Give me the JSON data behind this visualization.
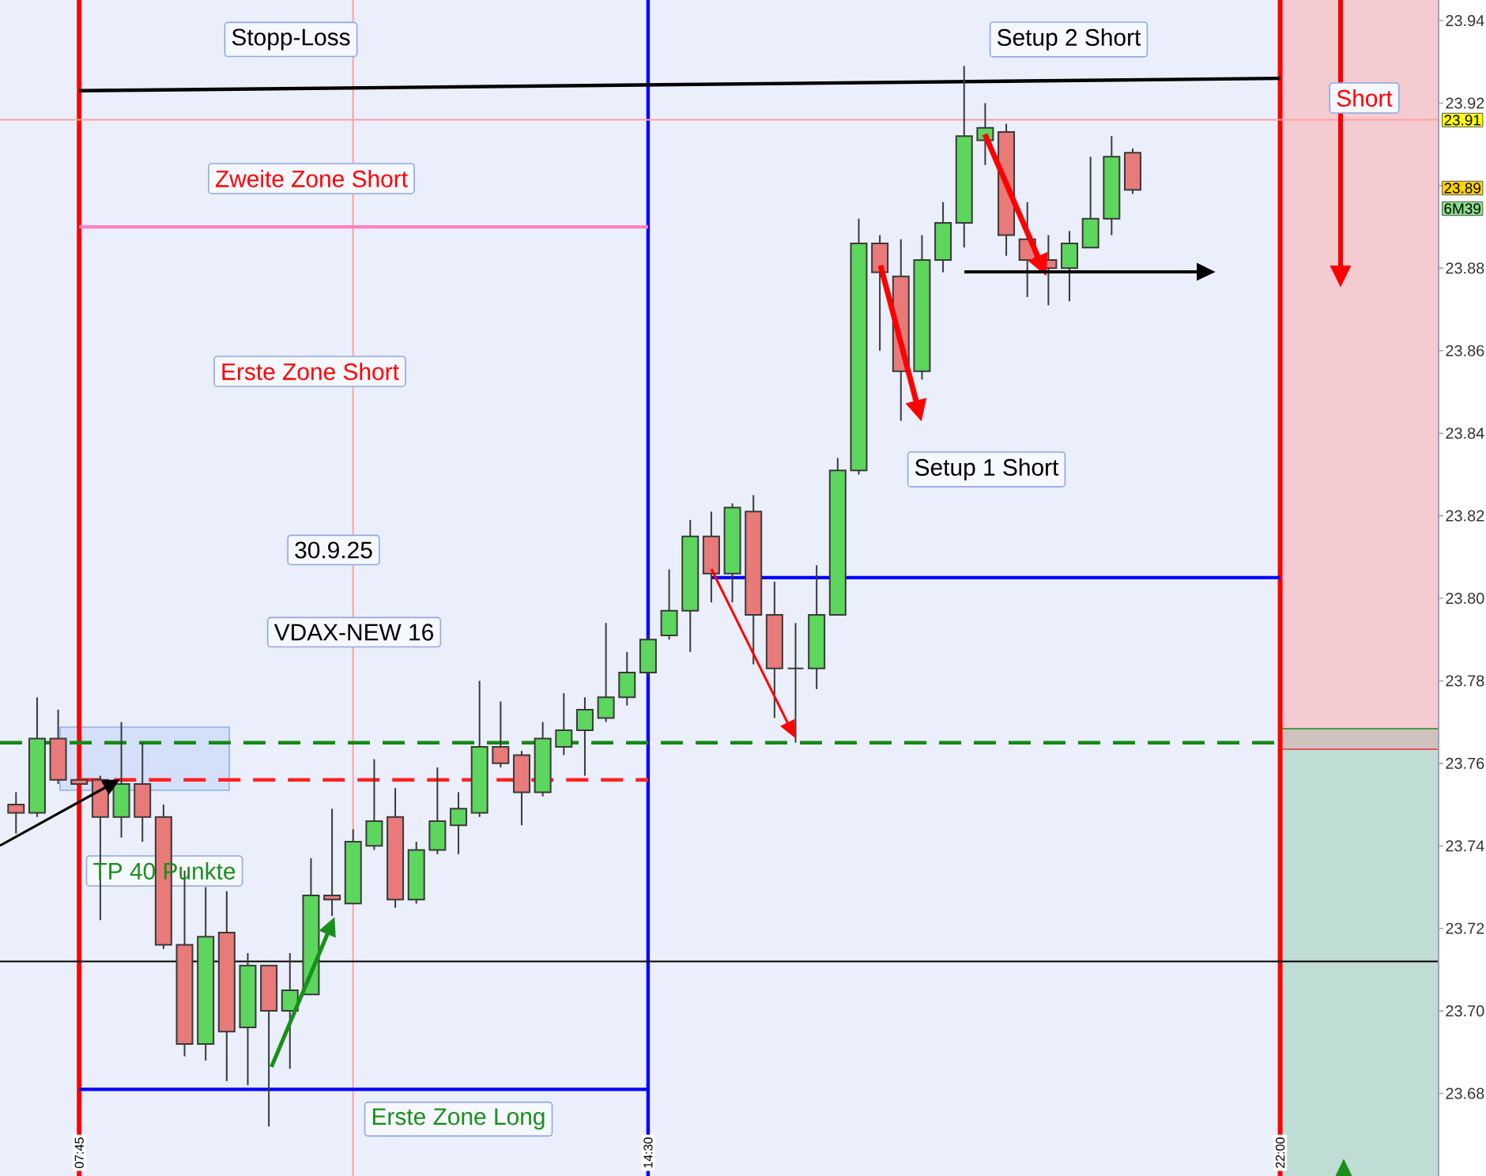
{
  "chart_data": {
    "type": "candlestick",
    "x": [
      7,
      7.25,
      7.5,
      7.75,
      8,
      8.25,
      8.5,
      8.75,
      9,
      9.25,
      9.5,
      9.75,
      10,
      10.25,
      10.5,
      10.75,
      11,
      11.25,
      11.5,
      11.75,
      12,
      12.25,
      12.5,
      12.75,
      13,
      13.25,
      13.5,
      13.75,
      14,
      14.25,
      14.5,
      14.75,
      15,
      15.25,
      15.5,
      15.75,
      16,
      16.25,
      16.5,
      16.75,
      17,
      17.25,
      17.5,
      17.75,
      18,
      18.25,
      18.5,
      18.75,
      19,
      19.25,
      19.5,
      19.75,
      20,
      20.25
    ],
    "ohlc": [
      [
        23.75,
        23.753,
        23.743,
        23.748
      ],
      [
        23.748,
        23.776,
        23.747,
        23.766
      ],
      [
        23.766,
        23.773,
        23.755,
        23.756
      ],
      [
        23.756,
        23.756,
        23.755,
        23.755
      ],
      [
        23.756,
        23.757,
        23.722,
        23.747
      ],
      [
        23.747,
        23.77,
        23.742,
        23.755
      ],
      [
        23.755,
        23.765,
        23.741,
        23.747
      ],
      [
        23.747,
        23.75,
        23.715,
        23.716
      ],
      [
        23.716,
        23.734,
        23.689,
        23.692
      ],
      [
        23.692,
        23.73,
        23.688,
        23.718
      ],
      [
        23.719,
        23.729,
        23.683,
        23.695
      ],
      [
        23.696,
        23.714,
        23.682,
        23.711
      ],
      [
        23.711,
        23.711,
        23.672,
        23.7
      ],
      [
        23.7,
        23.714,
        23.686,
        23.705
      ],
      [
        23.704,
        23.737,
        23.704,
        23.728
      ],
      [
        23.728,
        23.749,
        23.723,
        23.727
      ],
      [
        23.726,
        23.744,
        23.726,
        23.741
      ],
      [
        23.74,
        23.761,
        23.739,
        23.746
      ],
      [
        23.747,
        23.754,
        23.725,
        23.727
      ],
      [
        23.727,
        23.741,
        23.726,
        23.739
      ],
      [
        23.739,
        23.759,
        23.738,
        23.746
      ],
      [
        23.745,
        23.753,
        23.738,
        23.749
      ],
      [
        23.748,
        23.78,
        23.747,
        23.764
      ],
      [
        23.764,
        23.775,
        23.759,
        23.76
      ],
      [
        23.762,
        23.763,
        23.745,
        23.753
      ],
      [
        23.753,
        23.77,
        23.752,
        23.766
      ],
      [
        23.764,
        23.777,
        23.762,
        23.768
      ],
      [
        23.768,
        23.776,
        23.757,
        23.773
      ],
      [
        23.771,
        23.794,
        23.77,
        23.776
      ],
      [
        23.776,
        23.787,
        23.774,
        23.782
      ],
      [
        23.782,
        23.791,
        23.781,
        23.79
      ],
      [
        23.791,
        23.807,
        23.79,
        23.797
      ],
      [
        23.797,
        23.819,
        23.787,
        23.815
      ],
      [
        23.815,
        23.821,
        23.799,
        23.806
      ],
      [
        23.806,
        23.823,
        23.799,
        23.822
      ],
      [
        23.821,
        23.825,
        23.784,
        23.796
      ],
      [
        23.796,
        23.804,
        23.771,
        23.783
      ],
      [
        23.783,
        23.794,
        23.765,
        23.783
      ],
      [
        23.783,
        23.808,
        23.778,
        23.796
      ],
      [
        23.796,
        23.834,
        23.796,
        23.831
      ],
      [
        23.831,
        23.892,
        23.83,
        23.886
      ],
      [
        23.886,
        23.888,
        23.86,
        23.879
      ],
      [
        23.878,
        23.887,
        23.843,
        23.855
      ],
      [
        23.855,
        23.888,
        23.853,
        23.882
      ],
      [
        23.882,
        23.896,
        23.879,
        23.891
      ],
      [
        23.891,
        23.929,
        23.885,
        23.912
      ],
      [
        23.911,
        23.92,
        23.905,
        23.914
      ],
      [
        23.913,
        23.915,
        23.883,
        23.888
      ],
      [
        23.887,
        23.896,
        23.873,
        23.882
      ],
      [
        23.882,
        23.888,
        23.871,
        23.88
      ],
      [
        23.88,
        23.889,
        23.872,
        23.886
      ],
      [
        23.885,
        23.907,
        23.885,
        23.892
      ],
      [
        23.892,
        23.912,
        23.888,
        23.907
      ],
      [
        23.908,
        23.909,
        23.898,
        23.899
      ]
    ],
    "colors": [
      "#e87a7a",
      "#5cd65c",
      "#e87a7a",
      "#e87a7a",
      "#e87a7a",
      "#5cd65c",
      "#e87a7a",
      "#e87a7a",
      "#e87a7a",
      "#5cd65c",
      "#e87a7a",
      "#5cd65c",
      "#e87a7a",
      "#5cd65c",
      "#5cd65c",
      "#e87a7a",
      "#5cd65c",
      "#5cd65c",
      "#e87a7a",
      "#5cd65c",
      "#5cd65c",
      "#5cd65c",
      "#5cd65c",
      "#e87a7a",
      "#e87a7a",
      "#5cd65c",
      "#5cd65c",
      "#5cd65c",
      "#5cd65c",
      "#5cd65c",
      "#5cd65c",
      "#5cd65c",
      "#5cd65c",
      "#e87a7a",
      "#5cd65c",
      "#e87a7a",
      "#e87a7a",
      "#3a3a3a",
      "#5cd65c",
      "#5cd65c",
      "#5cd65c",
      "#e87a7a",
      "#e87a7a",
      "#5cd65c",
      "#5cd65c",
      "#5cd65c",
      "#5cd65c",
      "#e87a7a",
      "#e87a7a",
      "#e87a7a",
      "#5cd65c",
      "#5cd65c",
      "#5cd65c",
      "#e87a7a"
    ],
    "series": [
      {
        "type": "line",
        "name": "Stopp-Loss",
        "color": "#000000",
        "x": [
          7.75,
          22
        ],
        "values": [
          23.923,
          23.926
        ]
      },
      {
        "type": "line",
        "name": "Zweite Zone Short",
        "color": "#ff80c0",
        "x": [
          7.75,
          14.5
        ],
        "values": [
          23.89,
          23.89
        ]
      },
      {
        "type": "line",
        "color": "#0000ff",
        "x": [
          15.25,
          22
        ],
        "values": [
          23.805,
          23.805
        ]
      },
      {
        "type": "line",
        "name": "Erste Zone Long",
        "color": "#0000ff",
        "x": [
          7.75,
          14.5
        ],
        "values": [
          23.681,
          23.681
        ]
      },
      {
        "type": "line",
        "color": "#138a13",
        "x": [
          6.81,
          22
        ],
        "values": [
          23.765,
          23.765
        ],
        "line_style": "dashed"
      },
      {
        "type": "line",
        "color": "#ff2020",
        "x": [
          7.75,
          14.5
        ],
        "values": [
          23.756,
          23.756
        ],
        "line_style": "dashed"
      }
    ],
    "xlim": [
      6.81,
      23.88
    ],
    "ylim": [
      23.66,
      23.945
    ],
    "xticks": [
      {
        "value": 7.75,
        "label": "07:45"
      },
      {
        "value": 14.5,
        "label": "14:30"
      },
      {
        "value": 22,
        "label": "22:00"
      }
    ],
    "yticks": [
      23.68,
      {
        "value": 23.7,
        "label": "23.70"
      },
      23.72,
      23.74,
      23.76,
      23.78,
      {
        "value": 23.8,
        "label": "23.80"
      },
      23.82,
      23.84,
      23.86,
      23.88,
      {
        "value": 23.9,
        "label": null
      },
      23.92,
      23.94
    ],
    "ref_lines": [
      {
        "axis": "x",
        "value": 7.75,
        "color": "#ff0000"
      },
      {
        "axis": "x",
        "value": 14.5,
        "color": "#0000ff"
      },
      {
        "axis": "x",
        "value": 22,
        "color": "#ff0000"
      },
      {
        "axis": "x",
        "value": 11,
        "color": "#ffa0a0"
      },
      {
        "axis": "y",
        "value": 23.916,
        "color": "#ffa0a0"
      },
      {
        "axis": "y",
        "value": 23.712,
        "color": "#000000"
      }
    ],
    "bands": [
      {
        "axis": "x",
        "from": 22,
        "to": 23.88,
        "color": "#bfdcd5"
      }
    ],
    "annotations": [
      "Erste Zone Short",
      "30.9.25",
      "VDAX-NEW 16",
      "Setup 1 Short",
      "Setup 2 Short",
      "Short",
      "TP 40 Punkte",
      "23.91",
      "23.89",
      "6M39"
    ]
  }
}
